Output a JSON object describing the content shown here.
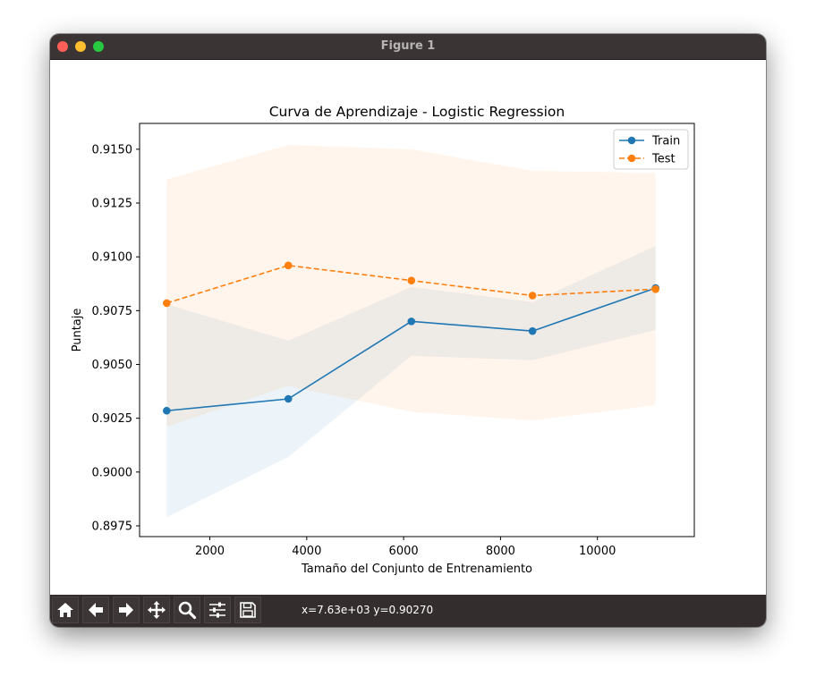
{
  "window": {
    "title": "Figure 1"
  },
  "toolbar": {
    "buttons": [
      {
        "name": "home-button",
        "icon": "home-icon"
      },
      {
        "name": "back-button",
        "icon": "arrow-left-icon"
      },
      {
        "name": "forward-button",
        "icon": "arrow-right-icon"
      },
      {
        "name": "pan-button",
        "icon": "move-icon"
      },
      {
        "name": "zoom-button",
        "icon": "magnifier-icon"
      },
      {
        "name": "configure-subplots-button",
        "icon": "sliders-icon"
      },
      {
        "name": "save-button",
        "icon": "floppy-disk-icon"
      }
    ],
    "coords": "x=7.63e+03 y=0.90270"
  },
  "chart_data": {
    "type": "line",
    "title": "Curva de Aprendizaje - Logistic Regression",
    "xlabel": "Tamaño del Conjunto de Entrenamiento",
    "ylabel": "Puntaje",
    "xlim": [
      550,
      12000
    ],
    "ylim": [
      0.897,
      0.9162
    ],
    "xticks": [
      2000,
      4000,
      6000,
      8000,
      10000
    ],
    "xtick_labels": [
      "2000",
      "4000",
      "6000",
      "8000",
      "10000"
    ],
    "yticks": [
      0.8975,
      0.9,
      0.9025,
      0.905,
      0.9075,
      0.91,
      0.9125,
      0.915
    ],
    "ytick_labels": [
      "0.8975",
      "0.9000",
      "0.9025",
      "0.9050",
      "0.9075",
      "0.9100",
      "0.9125",
      "0.9150"
    ],
    "grid": false,
    "legend": "top-right",
    "x": [
      1110,
      3620,
      6160,
      8660,
      11200
    ],
    "series": [
      {
        "name": "Train",
        "values": [
          0.90285,
          0.9034,
          0.907,
          0.90655,
          0.90855
        ],
        "lower": [
          0.8979,
          0.9007,
          0.9054,
          0.9052,
          0.9066
        ],
        "upper": [
          0.9078,
          0.9061,
          0.9086,
          0.9079,
          0.9105
        ],
        "color": "#1f77b4",
        "linestyle": "solid"
      },
      {
        "name": "Test",
        "values": [
          0.90785,
          0.9096,
          0.9089,
          0.9082,
          0.9085
        ],
        "lower": [
          0.9021,
          0.904,
          0.9028,
          0.9024,
          0.9031
        ],
        "upper": [
          0.9136,
          0.9152,
          0.915,
          0.914,
          0.9139
        ],
        "color": "#ff7f0e",
        "linestyle": "dashed"
      }
    ]
  }
}
